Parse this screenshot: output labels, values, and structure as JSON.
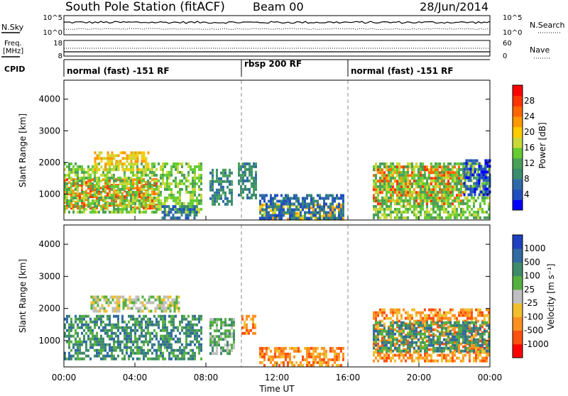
{
  "header": {
    "station": "South Pole Station (fitACF)",
    "beam": "Beam 00",
    "date": "28/Jun/2014"
  },
  "top_panels": {
    "nsky_label": "N.Sky",
    "nsky_ticks": [
      "10^5",
      "10^0"
    ],
    "nsearch_label": "N.Search",
    "nsearch_ticks": [
      "10^5",
      "10^0"
    ],
    "freq_label_1": "Freq.",
    "freq_label_2": "[MHz]",
    "freq_ticks": [
      "18",
      "8"
    ],
    "nave_label": "Nave",
    "nave_ticks": [
      "60",
      "0"
    ],
    "cpid_label": "CPID",
    "cpid_segments": [
      {
        "label": "normal (fast) -151 RF",
        "start": 0,
        "end": 10
      },
      {
        "label": "rbsp 200 RF",
        "start": 10,
        "end": 16
      },
      {
        "label": "normal (fast) -151 RF",
        "start": 16,
        "end": 24
      }
    ]
  },
  "chart_data": [
    {
      "type": "heatmap",
      "name": "power",
      "ylabel": "Slant Range [km]",
      "ylim": [
        180,
        4600
      ],
      "yticks": [
        "1000",
        "2000",
        "3000",
        "4000"
      ],
      "colorbar_label": "Power [dB]",
      "colorbar_ticks": [
        "4",
        "8",
        "12",
        "16",
        "20",
        "24",
        "28"
      ],
      "colors": [
        "#0000ff",
        "#2050c0",
        "#2f6aa8",
        "#3a8c6e",
        "#4aa05a",
        "#66cc33",
        "#c8d83a",
        "#ffcc00",
        "#ff9900",
        "#ff6600",
        "#ff3300",
        "#ff0000"
      ],
      "scatter_regions": [
        {
          "t0": 0.0,
          "t1": 5.2,
          "r0": 600,
          "r1": 1500,
          "level": 9
        },
        {
          "t0": 0.0,
          "t1": 7.8,
          "r0": 400,
          "r1": 2000,
          "level": 5
        },
        {
          "t0": 1.7,
          "t1": 4.8,
          "r0": 1800,
          "r1": 2350,
          "level": 7
        },
        {
          "t0": 5.5,
          "t1": 7.5,
          "r0": 250,
          "r1": 650,
          "level": 2
        },
        {
          "t0": 8.2,
          "t1": 9.5,
          "r0": 700,
          "r1": 1800,
          "level": 3
        },
        {
          "t0": 9.8,
          "t1": 10.8,
          "r0": 900,
          "r1": 2000,
          "level": 3
        },
        {
          "t0": 11.0,
          "t1": 15.8,
          "r0": 250,
          "r1": 700,
          "level": 7
        },
        {
          "t0": 11.0,
          "t1": 15.8,
          "r0": 250,
          "r1": 1000,
          "level": 2
        },
        {
          "t0": 17.4,
          "t1": 22.6,
          "r0": 700,
          "r1": 1900,
          "level": 9
        },
        {
          "t0": 17.4,
          "t1": 24.0,
          "r0": 250,
          "r1": 2000,
          "level": 5
        },
        {
          "t0": 22.5,
          "t1": 24.0,
          "r0": 1000,
          "r1": 2100,
          "level": 1
        }
      ]
    },
    {
      "type": "heatmap",
      "name": "velocity",
      "ylabel": "Slant Range [km]",
      "ylim": [
        180,
        4600
      ],
      "yticks": [
        "1000",
        "2000",
        "3000",
        "4000"
      ],
      "xlabel": "Time UT",
      "xlim": [
        0,
        24
      ],
      "xticks": [
        "00:00",
        "04:00",
        "08:00",
        "12:00",
        "16:00",
        "20:00",
        "00:00"
      ],
      "colorbar_label": "Velocity [m s⁻¹]",
      "colorbar_ticks": [
        "1000",
        "500",
        "100",
        "25",
        "-25",
        "-100",
        "-500",
        "-1000"
      ],
      "colors": [
        "#1e40c0",
        "#2f6aa0",
        "#3f8a6a",
        "#55b040",
        "#c0c0c0",
        "#f0c030",
        "#ff9020",
        "#ff5010",
        "#ff0000"
      ],
      "scatter_regions": [
        {
          "t0": 0.0,
          "t1": 7.8,
          "r0": 400,
          "r1": 1800,
          "level": 2
        },
        {
          "t0": 1.5,
          "t1": 6.5,
          "r0": 1900,
          "r1": 2400,
          "level": 4
        },
        {
          "t0": 8.2,
          "t1": 9.6,
          "r0": 600,
          "r1": 1700,
          "level": 3
        },
        {
          "t0": 10.0,
          "t1": 10.8,
          "r0": 1200,
          "r1": 1800,
          "level": 6
        },
        {
          "t0": 11.0,
          "t1": 15.8,
          "r0": 250,
          "r1": 800,
          "level": 6
        },
        {
          "t0": 17.4,
          "t1": 24.0,
          "r0": 400,
          "r1": 2000,
          "level": 6
        },
        {
          "t0": 17.4,
          "t1": 24.0,
          "r0": 700,
          "r1": 1600,
          "level": 2
        }
      ]
    }
  ]
}
